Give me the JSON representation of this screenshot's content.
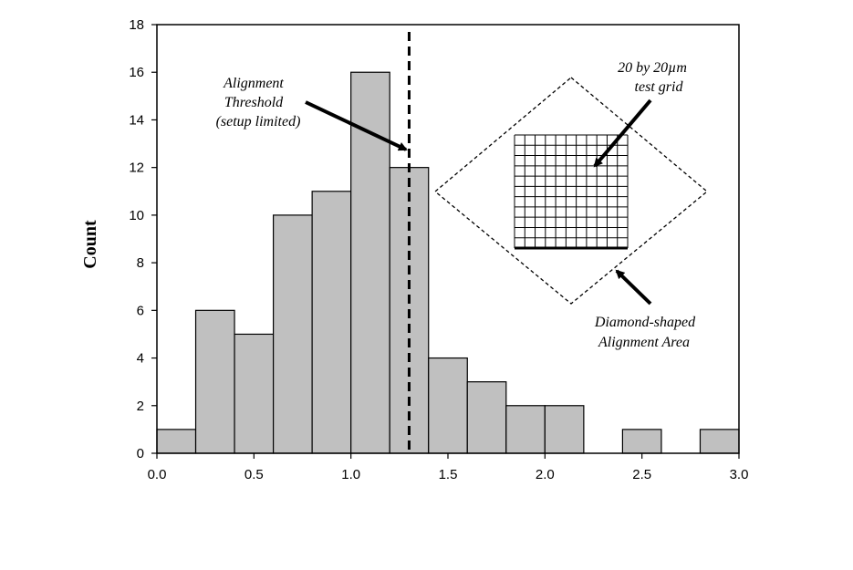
{
  "chart_data": {
    "type": "bar",
    "xlabel": "",
    "ylabel": "Count",
    "bin_width": 0.2,
    "bins": [
      {
        "start": 0.0,
        "count": 1
      },
      {
        "start": 0.2,
        "count": 6
      },
      {
        "start": 0.4,
        "count": 5
      },
      {
        "start": 0.6,
        "count": 10
      },
      {
        "start": 0.8,
        "count": 11
      },
      {
        "start": 1.0,
        "count": 16
      },
      {
        "start": 1.2,
        "count": 12
      },
      {
        "start": 1.4,
        "count": 4
      },
      {
        "start": 1.6,
        "count": 3
      },
      {
        "start": 1.8,
        "count": 2
      },
      {
        "start": 2.0,
        "count": 2
      },
      {
        "start": 2.2,
        "count": 0
      },
      {
        "start": 2.4,
        "count": 1
      },
      {
        "start": 2.6,
        "count": 0
      },
      {
        "start": 2.8,
        "count": 1
      }
    ],
    "xlim": [
      0,
      3.0
    ],
    "ylim": [
      0,
      18
    ],
    "x_ticks": [
      "0.0",
      "0.5",
      "1.0",
      "1.5",
      "2.0",
      "2.5",
      "3.0"
    ],
    "y_ticks": [
      "0",
      "2",
      "4",
      "6",
      "8",
      "10",
      "12",
      "14",
      "16",
      "18"
    ],
    "threshold_x": 1.3,
    "grid": false,
    "bar_color": "#c0c0c0",
    "annotations": {
      "threshold": [
        "Alignment",
        "Threshold",
        "(setup limited)"
      ],
      "test_grid": [
        "20 by 20µm",
        "test grid"
      ],
      "diamond": [
        "Diamond-shaped",
        "Alignment Area"
      ]
    }
  }
}
